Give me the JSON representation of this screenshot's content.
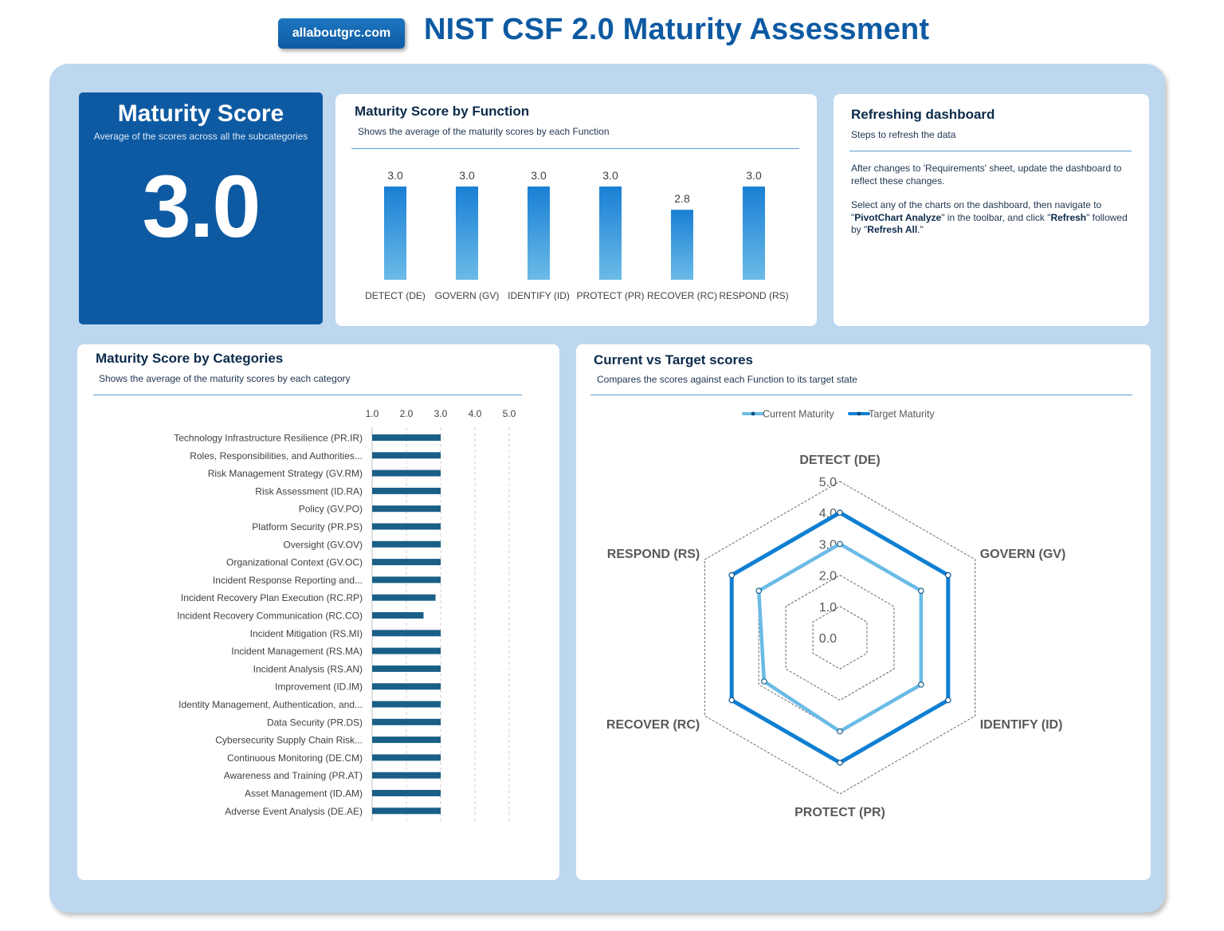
{
  "header": {
    "site_badge": "allaboutgrc.com",
    "title": "NIST CSF 2.0 Maturity Assessment"
  },
  "score_card": {
    "title": "Maturity Score",
    "subtitle": "Average of the scores across all the subcategories",
    "value": "3.0"
  },
  "function_card": {
    "title": "Maturity Score by Function",
    "subtitle": "Shows the average of the maturity scores by each Function"
  },
  "refresh_card": {
    "title": "Refreshing dashboard",
    "subtitle": "Steps to refresh the data",
    "para1": "After  changes to 'Requirements' sheet, update the dashboard to reflect these changes.",
    "para2_a": "Select any of the charts on the dashboard, then navigate to \"",
    "para2_b": "PivotChart Analyze",
    "para2_c": "\" in the toolbar, and click \"",
    "para2_d": "Refresh",
    "para2_e": "\" followed by \"",
    "para2_f": "Refresh All",
    "para2_g": ".\""
  },
  "category_card": {
    "title": "Maturity Score by Categories",
    "subtitle": "Shows the average of the maturity scores by each category"
  },
  "radar_card": {
    "title": "Current vs Target scores",
    "subtitle": "Compares the scores against each Function to its target state"
  },
  "colors": {
    "brand_blue": "#0d5aa2",
    "bar_top": "#1a7fd4",
    "bar_bottom": "#6bbbe7",
    "cat_bar": "#1a5f87",
    "current": "#6bbbe7",
    "target": "#0f7fd2"
  },
  "chart_data": [
    {
      "id": "function",
      "type": "bar",
      "title": "Maturity Score by Function",
      "categories": [
        "DETECT (DE)",
        "GOVERN (GV)",
        "IDENTIFY (ID)",
        "PROTECT (PR)",
        "RECOVER (RC)",
        "RESPOND (RS)"
      ],
      "values": [
        3.0,
        3.0,
        3.0,
        3.0,
        2.8,
        3.0
      ],
      "data_labels": [
        "3.0",
        "3.0",
        "3.0",
        "3.0",
        "2.8",
        "3.0"
      ],
      "ylim": [
        2.5,
        3.0
      ],
      "grid": false
    },
    {
      "id": "categories",
      "type": "bar",
      "orientation": "horizontal",
      "title": "Maturity Score by Categories",
      "categories": [
        "Technology Infrastructure Resilience (PR.IR)",
        "Roles, Responsibilities, and Authorities...",
        "Risk Management Strategy (GV.RM)",
        "Risk Assessment (ID.RA)",
        "Policy (GV.PO)",
        "Platform Security (PR.PS)",
        "Oversight (GV.OV)",
        "Organizational Context (GV.OC)",
        "Incident Response Reporting and...",
        "Incident Recovery Plan Execution (RC.RP)",
        "Incident Recovery Communication (RC.CO)",
        "Incident Mitigation (RS.MI)",
        "Incident Management (RS.MA)",
        "Incident Analysis (RS.AN)",
        "Improvement (ID.IM)",
        "Identity Management, Authentication, and...",
        "Data Security (PR.DS)",
        "Cybersecurity Supply Chain Risk...",
        "Continuous Monitoring (DE.CM)",
        "Awareness and Training (PR.AT)",
        "Asset Management (ID.AM)",
        "Adverse Event Analysis (DE.AE)"
      ],
      "values": [
        3.0,
        3.0,
        3.0,
        3.0,
        3.0,
        3.0,
        3.0,
        3.0,
        3.0,
        2.85,
        2.5,
        3.0,
        3.0,
        3.0,
        3.0,
        3.0,
        3.0,
        3.0,
        3.0,
        3.0,
        3.0,
        3.0
      ],
      "xlim": [
        1.0,
        5.0
      ],
      "xticks": [
        "1.0",
        "2.0",
        "3.0",
        "4.0",
        "5.0"
      ],
      "grid": true
    },
    {
      "id": "radar",
      "type": "radar",
      "title": "Current vs Target scores",
      "axes": [
        "DETECT (DE)",
        "GOVERN (GV)",
        "IDENTIFY (ID)",
        "PROTECT (PR)",
        "RECOVER (RC)",
        "RESPOND (RS)"
      ],
      "rlim": [
        0,
        5
      ],
      "rticks": [
        "0.0",
        "1.0",
        "2.0",
        "3.0",
        "4.0",
        "5.0"
      ],
      "series": [
        {
          "name": "Current Maturity",
          "values": [
            3.0,
            3.0,
            3.0,
            3.0,
            2.8,
            3.0
          ]
        },
        {
          "name": "Target Maturity",
          "values": [
            4.0,
            4.0,
            4.0,
            4.0,
            4.0,
            4.0
          ]
        }
      ],
      "legend": "top"
    }
  ]
}
